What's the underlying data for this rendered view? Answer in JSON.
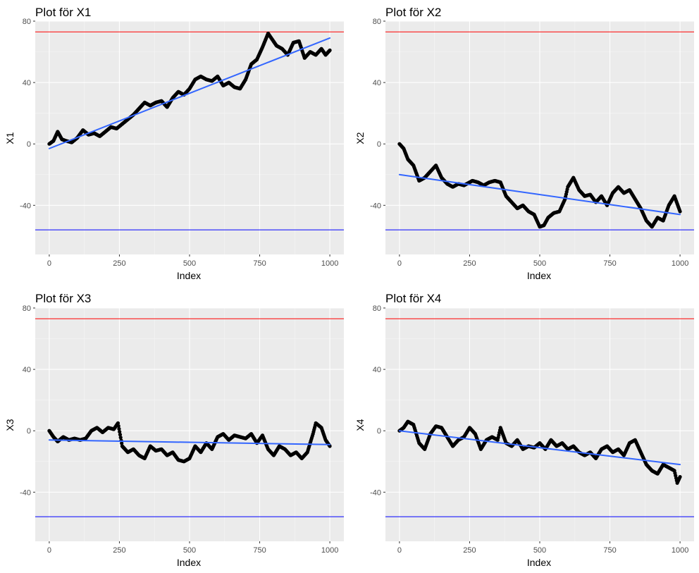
{
  "figure": {
    "style": {
      "panel_background": "#ebebeb",
      "grid_major": "#ffffff",
      "grid_minor": "#f5f5f5",
      "points_color": "#000000",
      "trend_color": "#3366ff",
      "upper_line_color": "#ff0000",
      "lower_line_color": "#0000ff",
      "tick_color": "#333333",
      "tick_label_color": "#4d4d4d"
    }
  },
  "chart_data": [
    {
      "type": "scatter",
      "title": "Plot för X1",
      "xlabel": "Index",
      "ylabel": "X1",
      "xlim": [
        -50,
        1050
      ],
      "ylim": [
        -72,
        80
      ],
      "xticks": [
        0,
        250,
        500,
        750,
        1000
      ],
      "xtick_labels": [
        "0",
        "250",
        "500",
        "750",
        "1000"
      ],
      "yticks": [
        -40,
        0,
        40,
        80
      ],
      "ytick_labels": [
        "-40",
        "0",
        "40",
        "80"
      ],
      "hlines": [
        {
          "y": 73,
          "color": "red"
        },
        {
          "y": -56,
          "color": "blue"
        }
      ],
      "trend": {
        "x": [
          0,
          1000
        ],
        "y": [
          -3,
          69
        ]
      },
      "series": [
        {
          "name": "X1",
          "x": [
            0,
            15,
            30,
            45,
            60,
            80,
            100,
            120,
            140,
            160,
            180,
            200,
            220,
            240,
            260,
            280,
            300,
            320,
            340,
            360,
            380,
            400,
            420,
            440,
            460,
            480,
            500,
            520,
            540,
            560,
            580,
            600,
            620,
            640,
            660,
            680,
            700,
            720,
            740,
            760,
            780,
            795,
            810,
            830,
            850,
            870,
            890,
            910,
            930,
            950,
            970,
            985,
            1000
          ],
          "y": [
            0,
            2,
            8,
            3,
            2,
            1,
            4,
            9,
            6,
            7,
            5,
            8,
            11,
            10,
            13,
            16,
            19,
            23,
            27,
            25,
            27,
            28,
            24,
            30,
            34,
            32,
            36,
            42,
            44,
            42,
            41,
            44,
            38,
            40,
            37,
            36,
            42,
            52,
            55,
            63,
            72,
            68,
            64,
            62,
            58,
            66,
            67,
            56,
            60,
            58,
            62,
            58,
            61
          ]
        }
      ]
    },
    {
      "type": "scatter",
      "title": "Plot för X2",
      "xlabel": "Index",
      "ylabel": "X2",
      "xlim": [
        -50,
        1050
      ],
      "ylim": [
        -72,
        80
      ],
      "xticks": [
        0,
        250,
        500,
        750,
        1000
      ],
      "xtick_labels": [
        "0",
        "250",
        "500",
        "750",
        "1000"
      ],
      "yticks": [
        -40,
        0,
        40,
        80
      ],
      "ytick_labels": [
        "-40",
        "0",
        "40",
        "80"
      ],
      "hlines": [
        {
          "y": 73,
          "color": "red"
        },
        {
          "y": -56,
          "color": "blue"
        }
      ],
      "trend": {
        "x": [
          0,
          1000
        ],
        "y": [
          -20,
          -46
        ]
      },
      "series": [
        {
          "name": "X2",
          "x": [
            0,
            15,
            30,
            50,
            70,
            90,
            110,
            130,
            150,
            170,
            190,
            210,
            230,
            260,
            280,
            300,
            320,
            340,
            360,
            380,
            400,
            420,
            440,
            460,
            480,
            500,
            515,
            530,
            550,
            570,
            590,
            600,
            620,
            640,
            660,
            680,
            700,
            720,
            740,
            760,
            780,
            800,
            820,
            840,
            860,
            880,
            900,
            920,
            940,
            960,
            980,
            1000
          ],
          "y": [
            0,
            -3,
            -10,
            -14,
            -24,
            -22,
            -18,
            -14,
            -22,
            -26,
            -28,
            -26,
            -27,
            -24,
            -25,
            -27,
            -25,
            -24,
            -25,
            -34,
            -38,
            -42,
            -40,
            -44,
            -46,
            -54,
            -53,
            -48,
            -45,
            -44,
            -36,
            -28,
            -22,
            -30,
            -34,
            -33,
            -38,
            -34,
            -40,
            -32,
            -28,
            -32,
            -30,
            -36,
            -42,
            -50,
            -54,
            -48,
            -50,
            -40,
            -34,
            -44
          ]
        }
      ]
    },
    {
      "type": "scatter",
      "title": "Plot för X3",
      "xlabel": "Index",
      "ylabel": "X3",
      "xlim": [
        -50,
        1050
      ],
      "ylim": [
        -72,
        80
      ],
      "xticks": [
        0,
        250,
        500,
        750,
        1000
      ],
      "xtick_labels": [
        "0",
        "250",
        "500",
        "750",
        "1000"
      ],
      "yticks": [
        -40,
        0,
        40,
        80
      ],
      "ytick_labels": [
        "-40",
        "0",
        "40",
        "80"
      ],
      "hlines": [
        {
          "y": 73,
          "color": "red"
        },
        {
          "y": -56,
          "color": "blue"
        }
      ],
      "trend": {
        "x": [
          0,
          1000
        ],
        "y": [
          -6,
          -9
        ]
      },
      "series": [
        {
          "name": "X3",
          "x": [
            0,
            15,
            30,
            50,
            70,
            90,
            110,
            130,
            150,
            170,
            190,
            210,
            230,
            245,
            260,
            280,
            300,
            320,
            340,
            360,
            380,
            400,
            420,
            440,
            460,
            480,
            500,
            520,
            540,
            560,
            580,
            600,
            620,
            640,
            660,
            680,
            700,
            720,
            740,
            760,
            780,
            800,
            820,
            840,
            860,
            880,
            900,
            920,
            940,
            950,
            970,
            985,
            1000
          ],
          "y": [
            0,
            -4,
            -7,
            -4,
            -6,
            -5,
            -6,
            -5,
            0,
            2,
            -1,
            2,
            1,
            5,
            -10,
            -14,
            -12,
            -16,
            -18,
            -10,
            -13,
            -12,
            -16,
            -14,
            -19,
            -20,
            -18,
            -10,
            -14,
            -8,
            -12,
            -4,
            -2,
            -6,
            -3,
            -4,
            -5,
            -2,
            -8,
            -3,
            -12,
            -16,
            -10,
            -12,
            -16,
            -14,
            -18,
            -14,
            -2,
            5,
            2,
            -6,
            -10
          ]
        }
      ]
    },
    {
      "type": "scatter",
      "title": "Plot för X4",
      "xlabel": "Index",
      "ylabel": "X4",
      "xlim": [
        -50,
        1050
      ],
      "ylim": [
        -72,
        80
      ],
      "xticks": [
        0,
        250,
        500,
        750,
        1000
      ],
      "xtick_labels": [
        "0",
        "250",
        "500",
        "750",
        "1000"
      ],
      "yticks": [
        -40,
        0,
        40,
        80
      ],
      "ytick_labels": [
        "-40",
        "0",
        "40",
        "80"
      ],
      "hlines": [
        {
          "y": 73,
          "color": "red"
        },
        {
          "y": -56,
          "color": "blue"
        }
      ],
      "trend": {
        "x": [
          0,
          1000
        ],
        "y": [
          0,
          -22
        ]
      },
      "series": [
        {
          "name": "X4",
          "x": [
            0,
            15,
            30,
            50,
            70,
            90,
            110,
            130,
            150,
            170,
            190,
            210,
            230,
            250,
            270,
            290,
            310,
            330,
            350,
            360,
            380,
            400,
            420,
            440,
            460,
            480,
            500,
            520,
            540,
            560,
            580,
            600,
            620,
            640,
            660,
            680,
            700,
            720,
            740,
            760,
            780,
            800,
            820,
            840,
            860,
            880,
            900,
            920,
            940,
            960,
            980,
            990,
            1000
          ],
          "y": [
            0,
            2,
            6,
            4,
            -8,
            -12,
            -2,
            3,
            2,
            -4,
            -10,
            -6,
            -4,
            2,
            -2,
            -12,
            -6,
            -4,
            -6,
            2,
            -8,
            -10,
            -6,
            -12,
            -10,
            -11,
            -8,
            -12,
            -6,
            -10,
            -8,
            -12,
            -10,
            -14,
            -16,
            -14,
            -18,
            -12,
            -10,
            -14,
            -12,
            -16,
            -8,
            -6,
            -14,
            -22,
            -26,
            -28,
            -22,
            -24,
            -26,
            -34,
            -30
          ]
        }
      ]
    }
  ]
}
